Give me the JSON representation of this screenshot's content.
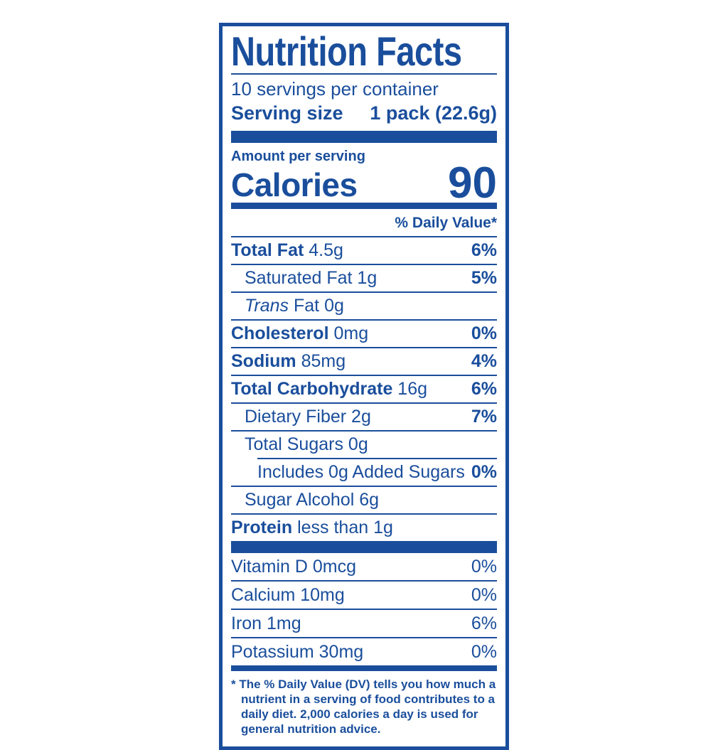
{
  "colors": {
    "blue": "#1a4e9c",
    "background": "#ffffff"
  },
  "label": {
    "title": "Nutrition Facts",
    "servings_per_container": "10 servings per container",
    "serving_size_label": "Serving size",
    "serving_size_value": "1 pack (22.6g)",
    "amount_per_serving": "Amount per serving",
    "calories_label": "Calories",
    "calories_value": "90",
    "daily_value_header": "% Daily Value*",
    "nutrients": [
      {
        "lead": "Total Fat",
        "lead_style": "bold",
        "rest": "4.5g",
        "pct": "6%",
        "indent": 0,
        "divider_indented": false
      },
      {
        "lead": "Saturated Fat",
        "lead_style": "regular",
        "rest": "1g",
        "pct": "5%",
        "indent": 1,
        "divider_indented": false
      },
      {
        "lead": "Trans",
        "lead_style": "italic",
        "rest": "Fat 0g",
        "pct": "",
        "indent": 1,
        "divider_indented": false
      },
      {
        "lead": "Cholesterol",
        "lead_style": "bold",
        "rest": "0mg",
        "pct": "0%",
        "indent": 0,
        "divider_indented": false
      },
      {
        "lead": "Sodium",
        "lead_style": "bold",
        "rest": "85mg",
        "pct": "4%",
        "indent": 0,
        "divider_indented": false
      },
      {
        "lead": "Total Carbohydrate",
        "lead_style": "bold",
        "rest": "16g",
        "pct": "6%",
        "indent": 0,
        "divider_indented": false
      },
      {
        "lead": "Dietary Fiber",
        "lead_style": "regular",
        "rest": "2g",
        "pct": "7%",
        "indent": 1,
        "divider_indented": false
      },
      {
        "lead": "Total Sugars",
        "lead_style": "regular",
        "rest": "0g",
        "pct": "",
        "indent": 1,
        "divider_indented": false
      },
      {
        "lead": "Includes 0g Added Sugars",
        "lead_style": "regular",
        "rest": "",
        "pct": "0%",
        "indent": 2,
        "divider_indented": true
      },
      {
        "lead": "Sugar Alcohol",
        "lead_style": "regular",
        "rest": "6g",
        "pct": "",
        "indent": 1,
        "divider_indented": false
      },
      {
        "lead": "Protein",
        "lead_style": "bold",
        "rest": "less than 1g",
        "pct": "",
        "indent": 0,
        "divider_indented": false
      }
    ],
    "vitamins": [
      {
        "name": "Vitamin D 0mcg",
        "pct": "0%"
      },
      {
        "name": "Calcium 10mg",
        "pct": "0%"
      },
      {
        "name": "Iron 1mg",
        "pct": "6%"
      },
      {
        "name": "Potassium 30mg",
        "pct": "0%"
      }
    ],
    "footnote": "* The % Daily Value (DV) tells you how much a nutrient in a serving of food contributes to a daily diet. 2,000 calories a day is used for general nutrition advice."
  }
}
